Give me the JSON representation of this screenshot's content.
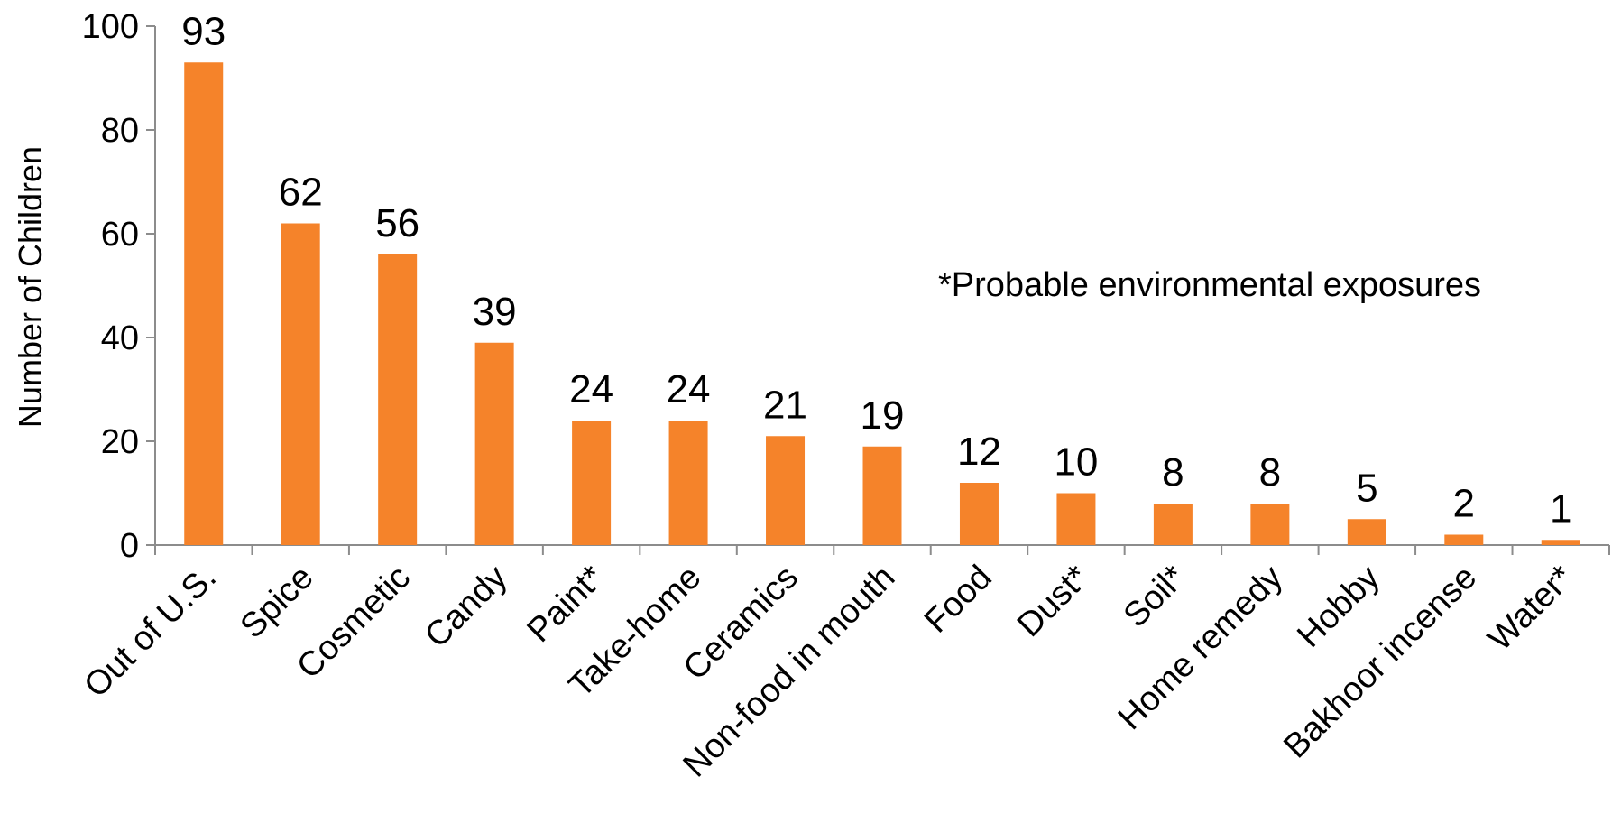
{
  "chart_data": {
    "type": "bar",
    "categories": [
      "Out of U.S.",
      "Spice",
      "Cosmetic",
      "Candy",
      "Paint*",
      "Take-home",
      "Ceramics",
      "Non-food in mouth",
      "Food",
      "Dust*",
      "Soil*",
      "Home remedy",
      "Hobby",
      "Bakhoor incense",
      "Water*"
    ],
    "values": [
      93,
      62,
      56,
      39,
      24,
      24,
      21,
      19,
      12,
      10,
      8,
      8,
      5,
      2,
      1
    ],
    "data_labels": [
      "93",
      "62",
      "56",
      "39",
      "24",
      "24",
      "21",
      "19",
      "12",
      "10",
      "8",
      "8",
      "5",
      "2",
      "1"
    ],
    "title": "",
    "xlabel": "",
    "ylabel": "Number of Children",
    "ylim": [
      0,
      100
    ],
    "yticks": [
      "0",
      "20",
      "40",
      "60",
      "80",
      "100"
    ],
    "annotation": "*Probable environmental exposures",
    "bar_color": "#F5832A",
    "axis_color": "#8C8C8C",
    "grid": false,
    "legend": "none"
  }
}
